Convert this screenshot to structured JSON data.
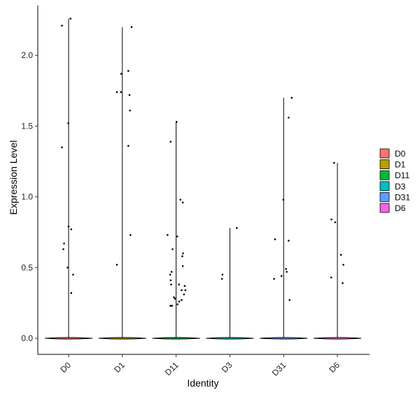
{
  "chart_data": {
    "type": "violin",
    "xlabel": "Identity",
    "ylabel": "Expression Level",
    "categories": [
      "D0",
      "D1",
      "D11",
      "D3",
      "D31",
      "D6"
    ],
    "y_ticks": [
      "0.0",
      "0.5",
      "1.0",
      "1.5",
      "2.0"
    ],
    "ylim": [
      -0.1,
      2.32
    ],
    "grid": false,
    "legend_position": "right",
    "legend": [
      {
        "label": "D0",
        "color": "#F8766D"
      },
      {
        "label": "D1",
        "color": "#B79F00"
      },
      {
        "label": "D11",
        "color": "#00BA38"
      },
      {
        "label": "D3",
        "color": "#00BFC4"
      },
      {
        "label": "D31",
        "color": "#619CFF"
      },
      {
        "label": "D6",
        "color": "#F564E3"
      }
    ],
    "series": [
      {
        "category": "D0",
        "max": 2.26,
        "points": [
          [
            -0.28,
            2.21
          ],
          [
            0.08,
            2.26
          ],
          [
            -0.01,
            1.52
          ],
          [
            -0.28,
            1.35
          ],
          [
            0.0,
            0.79
          ],
          [
            0.11,
            0.77
          ],
          [
            -0.19,
            0.67
          ],
          [
            -0.22,
            0.63
          ],
          [
            -0.04,
            0.5
          ],
          [
            0.19,
            0.45
          ],
          [
            0.11,
            0.32
          ]
        ]
      },
      {
        "category": "D1",
        "max": 2.2,
        "points": [
          [
            0.39,
            2.2
          ],
          [
            0.25,
            1.89
          ],
          [
            -0.05,
            1.87
          ],
          [
            -0.23,
            1.74
          ],
          [
            -0.06,
            1.74
          ],
          [
            0.3,
            1.72
          ],
          [
            0.32,
            1.61
          ],
          [
            0.25,
            1.36
          ],
          [
            0.34,
            0.73
          ],
          [
            -0.23,
            0.52
          ]
        ]
      },
      {
        "category": "D11",
        "max": 1.53,
        "points": [
          [
            0.02,
            1.53
          ],
          [
            -0.23,
            1.39
          ],
          [
            0.18,
            0.98
          ],
          [
            0.28,
            0.96
          ],
          [
            -0.36,
            0.73
          ],
          [
            0.05,
            0.72
          ],
          [
            -0.15,
            0.63
          ],
          [
            0.29,
            0.6
          ],
          [
            0.26,
            0.58
          ],
          [
            0.28,
            0.51
          ],
          [
            -0.19,
            0.47
          ],
          [
            -0.25,
            0.45
          ],
          [
            -0.23,
            0.41
          ],
          [
            -0.21,
            0.38
          ],
          [
            0.12,
            0.38
          ],
          [
            0.36,
            0.37
          ],
          [
            0.23,
            0.34
          ],
          [
            0.39,
            0.34
          ],
          [
            0.33,
            0.31
          ],
          [
            -0.09,
            0.29
          ],
          [
            -0.05,
            0.28
          ],
          [
            0.23,
            0.27
          ],
          [
            0.13,
            0.26
          ],
          [
            0.06,
            0.24
          ],
          [
            -0.24,
            0.23
          ],
          [
            -0.17,
            0.23
          ]
        ]
      },
      {
        "category": "D3",
        "max": 0.78,
        "points": [
          [
            0.29,
            0.78
          ],
          [
            -0.31,
            0.45
          ],
          [
            -0.33,
            0.42
          ]
        ]
      },
      {
        "category": "D31",
        "max": 1.7,
        "points": [
          [
            0.34,
            1.7
          ],
          [
            0.21,
            1.56
          ],
          [
            -0.01,
            0.98
          ],
          [
            -0.36,
            0.7
          ],
          [
            0.21,
            0.69
          ],
          [
            0.1,
            0.49
          ],
          [
            0.13,
            0.47
          ],
          [
            -0.09,
            0.44
          ],
          [
            -0.4,
            0.42
          ],
          [
            0.25,
            0.27
          ]
        ]
      },
      {
        "category": "D6",
        "max": 1.24,
        "points": [
          [
            -0.14,
            1.24
          ],
          [
            -0.25,
            0.84
          ],
          [
            -0.09,
            0.82
          ],
          [
            0.15,
            0.59
          ],
          [
            0.25,
            0.52
          ],
          [
            -0.26,
            0.43
          ],
          [
            0.22,
            0.39
          ]
        ]
      }
    ]
  }
}
